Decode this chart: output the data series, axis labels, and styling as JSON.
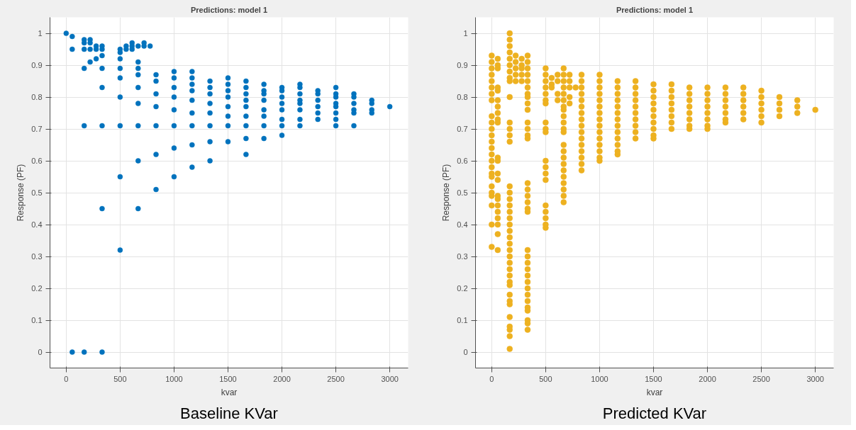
{
  "chart_data": [
    {
      "type": "scatter",
      "title": "Predictions: model 1",
      "xlabel": "kvar",
      "ylabel": "Response (PF)",
      "annotations": [
        "Baseline KVar"
      ],
      "xlim": [
        -150,
        3170
      ],
      "ylim": [
        -0.05,
        1.05
      ],
      "xticks": [
        0,
        500,
        1000,
        1500,
        2000,
        2500,
        3000
      ],
      "yticks": [
        0,
        0.1,
        0.2,
        0.3,
        0.4,
        0.5,
        0.6,
        0.7,
        0.8,
        0.9,
        1
      ],
      "grid": true,
      "marker": "circle",
      "series": [
        {
          "color": "#0072bd",
          "x": [
            0,
            56,
            56,
            56,
            167,
            167,
            167,
            167,
            167,
            167,
            222,
            222,
            222,
            222,
            278,
            278,
            278,
            333,
            333,
            333,
            333,
            333,
            333,
            333,
            333,
            500,
            500,
            500,
            500,
            500,
            500,
            500,
            500,
            500,
            556,
            556,
            611,
            611,
            611,
            667,
            667,
            667,
            667,
            667,
            667,
            667,
            667,
            667,
            722,
            722,
            778,
            833,
            833,
            833,
            833,
            833,
            833,
            833,
            1000,
            1000,
            1000,
            1000,
            1000,
            1000,
            1000,
            1000,
            1167,
            1167,
            1167,
            1167,
            1167,
            1167,
            1167,
            1167,
            1167,
            1333,
            1333,
            1333,
            1333,
            1333,
            1333,
            1333,
            1333,
            1500,
            1500,
            1500,
            1500,
            1500,
            1500,
            1500,
            1500,
            1667,
            1667,
            1667,
            1667,
            1667,
            1667,
            1667,
            1667,
            1667,
            1833,
            1833,
            1833,
            1833,
            1833,
            1833,
            1833,
            1833,
            2000,
            2000,
            2000,
            2000,
            2000,
            2000,
            2000,
            2000,
            2167,
            2167,
            2167,
            2167,
            2167,
            2167,
            2167,
            2167,
            2333,
            2333,
            2333,
            2333,
            2333,
            2333,
            2500,
            2500,
            2500,
            2500,
            2500,
            2500,
            2500,
            2500,
            2667,
            2667,
            2667,
            2667,
            2667,
            2667,
            2833,
            2833,
            2833,
            2833,
            3000
          ],
          "values": [
            1.0,
            0.99,
            0.95,
            0,
            0.98,
            0.97,
            0.95,
            0.89,
            0.71,
            0,
            0.98,
            0.97,
            0.95,
            0.91,
            0.96,
            0.95,
            0.92,
            0.96,
            0.95,
            0.93,
            0.89,
            0.83,
            0.71,
            0.45,
            0,
            0.95,
            0.94,
            0.92,
            0.89,
            0.86,
            0.8,
            0.71,
            0.55,
            0.32,
            0.96,
            0.95,
            0.97,
            0.96,
            0.95,
            0.96,
            0.91,
            0.89,
            0.87,
            0.83,
            0.78,
            0.71,
            0.6,
            0.45,
            0.97,
            0.96,
            0.96,
            0.87,
            0.85,
            0.81,
            0.77,
            0.71,
            0.62,
            0.51,
            0.88,
            0.86,
            0.83,
            0.8,
            0.76,
            0.71,
            0.64,
            0.55,
            0.88,
            0.86,
            0.84,
            0.82,
            0.79,
            0.75,
            0.71,
            0.65,
            0.58,
            0.85,
            0.83,
            0.81,
            0.78,
            0.75,
            0.71,
            0.66,
            0.6,
            0.86,
            0.84,
            0.82,
            0.8,
            0.77,
            0.74,
            0.71,
            0.66,
            0.85,
            0.83,
            0.81,
            0.79,
            0.77,
            0.74,
            0.71,
            0.67,
            0.62,
            0.84,
            0.82,
            0.81,
            0.79,
            0.76,
            0.74,
            0.71,
            0.67,
            0.83,
            0.82,
            0.8,
            0.78,
            0.76,
            0.73,
            0.71,
            0.68,
            0.84,
            0.83,
            0.81,
            0.79,
            0.78,
            0.76,
            0.73,
            0.71,
            0.82,
            0.81,
            0.79,
            0.77,
            0.75,
            0.73,
            0.83,
            0.81,
            0.8,
            0.78,
            0.77,
            0.75,
            0.73,
            0.71,
            0.81,
            0.8,
            0.78,
            0.76,
            0.75,
            0.71,
            0.79,
            0.78,
            0.76,
            0.75,
            0.77
          ]
        }
      ]
    },
    {
      "type": "scatter",
      "title": "Predictions: model 1",
      "xlabel": "kvar",
      "ylabel": "Response (PF)",
      "annotations": [
        "Predicted KVar"
      ],
      "xlim": [
        -150,
        3170
      ],
      "ylim": [
        -0.05,
        1.05
      ],
      "xticks": [
        0,
        500,
        1000,
        1500,
        2000,
        2500,
        3000
      ],
      "yticks": [
        0,
        0.1,
        0.2,
        0.3,
        0.4,
        0.5,
        0.6,
        0.7,
        0.8,
        0.9,
        1
      ],
      "grid": true,
      "marker": "circle",
      "series": [
        {
          "color": "#edb120",
          "x": [
            0,
            0,
            0,
            0,
            0,
            0,
            0,
            0,
            0,
            0,
            0,
            0,
            0,
            0,
            0,
            0,
            0,
            0,
            0,
            0,
            0,
            0,
            0,
            0,
            0,
            56,
            56,
            56,
            56,
            56,
            56,
            56,
            56,
            56,
            56,
            56,
            56,
            56,
            56,
            56,
            56,
            56,
            56,
            56,
            56,
            56,
            56,
            167,
            167,
            167,
            167,
            167,
            167,
            167,
            167,
            167,
            167,
            167,
            167,
            167,
            167,
            167,
            167,
            167,
            167,
            167,
            167,
            167,
            167,
            167,
            167,
            167,
            167,
            167,
            167,
            167,
            167,
            167,
            167,
            167,
            167,
            167,
            167,
            167,
            167,
            167,
            222,
            222,
            222,
            222,
            222,
            278,
            278,
            278,
            278,
            278,
            333,
            333,
            333,
            333,
            333,
            333,
            333,
            333,
            333,
            333,
            333,
            333,
            333,
            333,
            333,
            333,
            333,
            333,
            333,
            333,
            333,
            333,
            333,
            333,
            333,
            333,
            333,
            333,
            333,
            333,
            333,
            333,
            333,
            333,
            500,
            500,
            500,
            500,
            500,
            500,
            500,
            500,
            500,
            500,
            500,
            500,
            500,
            500,
            500,
            500,
            500,
            500,
            500,
            556,
            556,
            556,
            611,
            611,
            611,
            611,
            667,
            667,
            667,
            667,
            667,
            667,
            667,
            667,
            667,
            667,
            667,
            667,
            667,
            667,
            667,
            667,
            667,
            667,
            667,
            667,
            667,
            667,
            722,
            722,
            722,
            722,
            722,
            778,
            833,
            833,
            833,
            833,
            833,
            833,
            833,
            833,
            833,
            833,
            833,
            833,
            833,
            833,
            833,
            833,
            1000,
            1000,
            1000,
            1000,
            1000,
            1000,
            1000,
            1000,
            1000,
            1000,
            1000,
            1000,
            1000,
            1000,
            1000,
            1167,
            1167,
            1167,
            1167,
            1167,
            1167,
            1167,
            1167,
            1167,
            1167,
            1167,
            1167,
            1167,
            1333,
            1333,
            1333,
            1333,
            1333,
            1333,
            1333,
            1333,
            1333,
            1333,
            1500,
            1500,
            1500,
            1500,
            1500,
            1500,
            1500,
            1500,
            1500,
            1500,
            1667,
            1667,
            1667,
            1667,
            1667,
            1667,
            1667,
            1667,
            1833,
            1833,
            1833,
            1833,
            1833,
            1833,
            1833,
            1833,
            2000,
            2000,
            2000,
            2000,
            2000,
            2000,
            2000,
            2000,
            2167,
            2167,
            2167,
            2167,
            2167,
            2167,
            2167,
            2333,
            2333,
            2333,
            2333,
            2333,
            2333,
            2500,
            2500,
            2500,
            2500,
            2500,
            2500,
            2667,
            2667,
            2667,
            2667,
            2833,
            2833,
            2833,
            3000
          ],
          "values": [
            0.93,
            0.91,
            0.89,
            0.87,
            0.85,
            0.83,
            0.81,
            0.79,
            0.74,
            0.72,
            0.7,
            0.68,
            0.66,
            0.64,
            0.62,
            0.6,
            0.58,
            0.56,
            0.55,
            0.52,
            0.5,
            0.49,
            0.46,
            0.4,
            0.33,
            0.92,
            0.9,
            0.89,
            0.83,
            0.82,
            0.79,
            0.77,
            0.75,
            0.73,
            0.72,
            0.61,
            0.6,
            0.56,
            0.54,
            0.49,
            0.48,
            0.46,
            0.44,
            0.42,
            0.4,
            0.37,
            0.32,
            1.0,
            0.98,
            0.96,
            0.94,
            0.92,
            0.9,
            0.88,
            0.86,
            0.85,
            0.8,
            0.72,
            0.7,
            0.68,
            0.66,
            0.52,
            0.5,
            0.48,
            0.46,
            0.44,
            0.42,
            0.4,
            0.38,
            0.36,
            0.34,
            0.32,
            0.3,
            0.28,
            0.26,
            0.24,
            0.22,
            0.21,
            0.18,
            0.16,
            0.15,
            0.11,
            0.08,
            0.07,
            0.05,
            0.01,
            0.93,
            0.91,
            0.89,
            0.87,
            0.85,
            0.92,
            0.9,
            0.89,
            0.87,
            0.85,
            0.93,
            0.91,
            0.89,
            0.87,
            0.85,
            0.83,
            0.81,
            0.8,
            0.78,
            0.76,
            0.72,
            0.7,
            0.68,
            0.67,
            0.53,
            0.51,
            0.49,
            0.47,
            0.45,
            0.44,
            0.32,
            0.3,
            0.28,
            0.26,
            0.24,
            0.22,
            0.2,
            0.18,
            0.16,
            0.14,
            0.13,
            0.1,
            0.09,
            0.07,
            0.89,
            0.87,
            0.85,
            0.83,
            0.81,
            0.79,
            0.78,
            0.72,
            0.7,
            0.69,
            0.6,
            0.58,
            0.56,
            0.54,
            0.46,
            0.44,
            0.42,
            0.4,
            0.39,
            0.86,
            0.84,
            0.83,
            0.87,
            0.85,
            0.81,
            0.79,
            0.89,
            0.87,
            0.85,
            0.83,
            0.81,
            0.79,
            0.77,
            0.76,
            0.74,
            0.72,
            0.7,
            0.69,
            0.65,
            0.63,
            0.61,
            0.59,
            0.57,
            0.55,
            0.53,
            0.51,
            0.49,
            0.47,
            0.87,
            0.85,
            0.83,
            0.8,
            0.78,
            0.83,
            0.87,
            0.85,
            0.83,
            0.81,
            0.79,
            0.77,
            0.75,
            0.73,
            0.71,
            0.69,
            0.67,
            0.65,
            0.63,
            0.61,
            0.59,
            0.57,
            0.87,
            0.85,
            0.83,
            0.81,
            0.79,
            0.77,
            0.75,
            0.73,
            0.71,
            0.69,
            0.67,
            0.65,
            0.63,
            0.61,
            0.6,
            0.85,
            0.83,
            0.81,
            0.79,
            0.77,
            0.75,
            0.73,
            0.71,
            0.69,
            0.67,
            0.65,
            0.63,
            0.62,
            0.85,
            0.83,
            0.81,
            0.79,
            0.77,
            0.75,
            0.73,
            0.71,
            0.69,
            0.67,
            0.84,
            0.82,
            0.8,
            0.78,
            0.76,
            0.74,
            0.72,
            0.7,
            0.68,
            0.67,
            0.84,
            0.82,
            0.8,
            0.78,
            0.76,
            0.74,
            0.72,
            0.7,
            0.83,
            0.81,
            0.79,
            0.77,
            0.75,
            0.73,
            0.71,
            0.7,
            0.83,
            0.81,
            0.79,
            0.77,
            0.75,
            0.73,
            0.71,
            0.7,
            0.83,
            0.81,
            0.79,
            0.77,
            0.75,
            0.73,
            0.72,
            0.83,
            0.81,
            0.79,
            0.77,
            0.75,
            0.73,
            0.82,
            0.8,
            0.78,
            0.76,
            0.74,
            0.72,
            0.8,
            0.78,
            0.76,
            0.74,
            0.79,
            0.77,
            0.75,
            0.76
          ]
        }
      ]
    }
  ]
}
